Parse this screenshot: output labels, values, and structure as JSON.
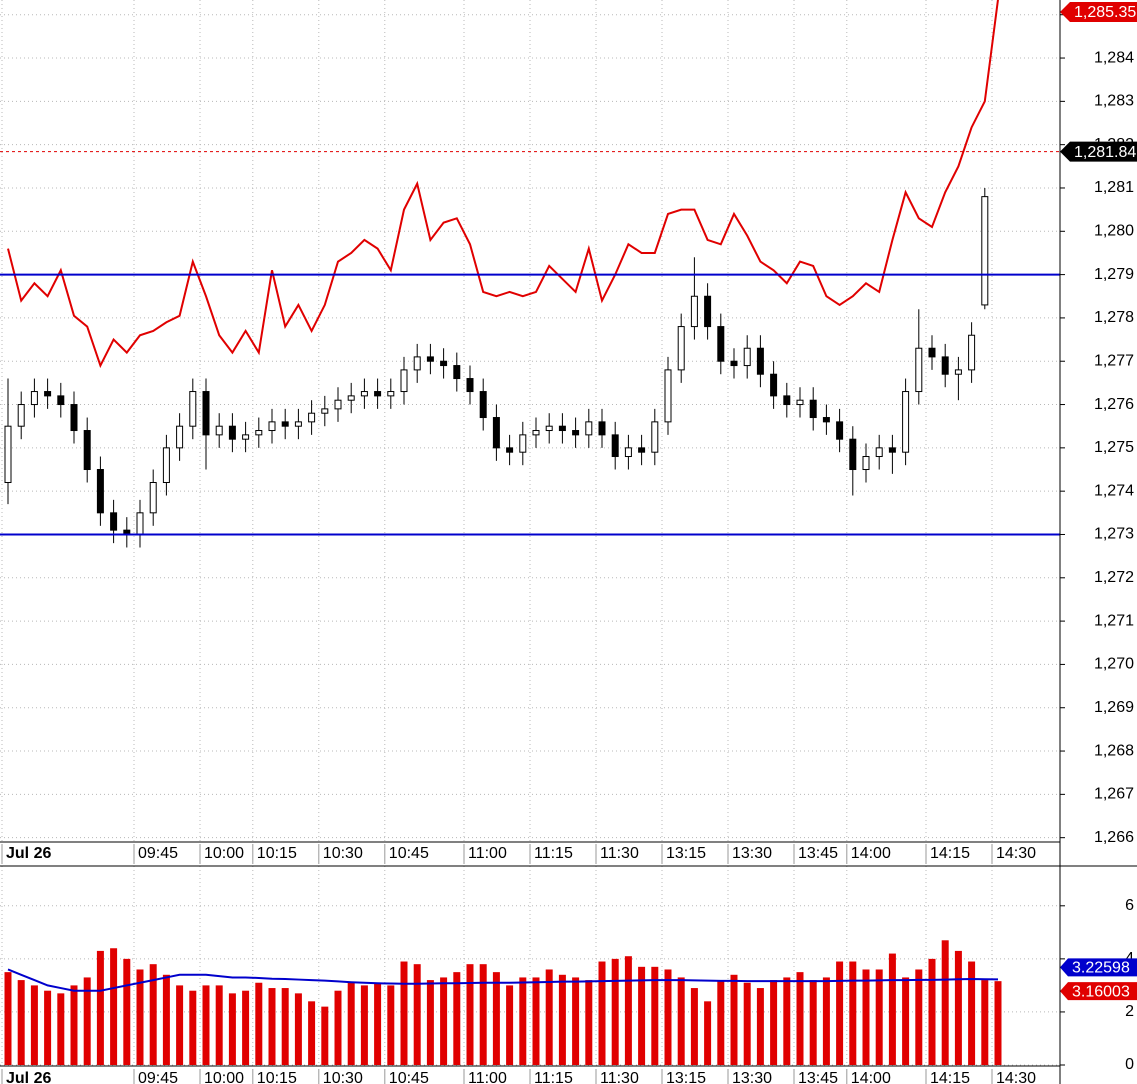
{
  "chart_data": [
    {
      "type": "candlestick",
      "categories": [
        "Jul 26",
        null,
        null,
        null,
        null,
        null,
        null,
        null,
        null,
        null,
        "09:45",
        null,
        null,
        null,
        null,
        "10:00",
        null,
        null,
        null,
        "10:15",
        null,
        null,
        null,
        null,
        "10:30",
        null,
        null,
        null,
        null,
        "10:45",
        null,
        null,
        null,
        null,
        null,
        "11:00",
        null,
        null,
        null,
        null,
        "11:15",
        null,
        null,
        null,
        null,
        "11:30",
        null,
        null,
        null,
        null,
        "13:15",
        null,
        null,
        null,
        null,
        "13:30",
        null,
        null,
        null,
        null,
        "13:45",
        null,
        null,
        null,
        "14:00",
        null,
        null,
        null,
        null,
        null,
        "14:15",
        null,
        null,
        null,
        null,
        "14:30"
      ],
      "open": [
        1274.2,
        1275.5,
        1276.0,
        1276.3,
        1276.2,
        1276.0,
        1275.4,
        1274.5,
        1273.5,
        1273.1,
        1273.0,
        1273.5,
        1274.2,
        1275.0,
        1275.5,
        1276.3,
        1275.3,
        1275.5,
        1275.2,
        1275.3,
        1275.4,
        1275.6,
        1275.5,
        1275.6,
        1275.8,
        1275.9,
        1276.1,
        1276.2,
        1276.3,
        1276.2,
        1276.3,
        1276.8,
        1277.1,
        1277.0,
        1276.9,
        1276.6,
        1276.3,
        1275.7,
        1275.0,
        1274.9,
        1275.3,
        1275.4,
        1275.5,
        1275.4,
        1275.3,
        1275.6,
        1275.3,
        1274.8,
        1275.0,
        1274.9,
        1275.6,
        1276.8,
        1277.8,
        1278.5,
        1277.8,
        1277.0,
        1276.9,
        1277.3,
        1276.7,
        1276.2,
        1276.0,
        1276.1,
        1275.7,
        1275.6,
        1275.2,
        1274.5,
        1274.8,
        1275.0,
        1274.9,
        1276.3,
        1277.3,
        1277.1,
        1276.7,
        1276.8,
        1278.3,
        null
      ],
      "high": [
        1276.6,
        1276.3,
        1276.6,
        1276.6,
        1276.5,
        1276.3,
        1275.7,
        1274.8,
        1273.8,
        1273.4,
        1273.8,
        1274.5,
        1275.3,
        1275.8,
        1276.6,
        1276.6,
        1275.8,
        1275.8,
        1275.6,
        1275.7,
        1275.9,
        1275.9,
        1275.9,
        1276.1,
        1276.2,
        1276.4,
        1276.5,
        1276.6,
        1276.6,
        1276.6,
        1277.1,
        1277.4,
        1277.4,
        1277.3,
        1277.2,
        1276.9,
        1276.6,
        1276.0,
        1275.3,
        1275.6,
        1275.7,
        1275.8,
        1275.8,
        1275.7,
        1275.9,
        1275.9,
        1275.6,
        1275.3,
        1275.3,
        1275.9,
        1277.1,
        1278.1,
        1279.4,
        1278.8,
        1278.1,
        1277.3,
        1277.6,
        1277.6,
        1277.0,
        1276.5,
        1276.4,
        1276.4,
        1276.0,
        1275.9,
        1275.5,
        1275.1,
        1275.3,
        1275.3,
        1276.6,
        1278.2,
        1277.6,
        1277.4,
        1277.1,
        1277.9,
        1281.0,
        null
      ],
      "low": [
        1273.7,
        1275.2,
        1275.7,
        1275.9,
        1275.7,
        1275.1,
        1274.2,
        1273.2,
        1272.8,
        1272.7,
        1272.7,
        1273.2,
        1273.9,
        1274.7,
        1275.2,
        1274.5,
        1275.0,
        1274.9,
        1274.9,
        1275.0,
        1275.1,
        1275.2,
        1275.2,
        1275.3,
        1275.5,
        1275.6,
        1275.8,
        1275.9,
        1275.9,
        1275.9,
        1276.0,
        1276.5,
        1276.7,
        1276.6,
        1276.3,
        1276.0,
        1275.4,
        1274.7,
        1274.6,
        1274.6,
        1275.0,
        1275.1,
        1275.1,
        1275.0,
        1275.0,
        1275.0,
        1274.5,
        1274.5,
        1274.6,
        1274.6,
        1275.3,
        1276.5,
        1277.5,
        1277.5,
        1276.7,
        1276.6,
        1276.6,
        1276.4,
        1275.9,
        1275.7,
        1275.7,
        1275.4,
        1275.3,
        1274.9,
        1273.9,
        1274.2,
        1274.5,
        1274.4,
        1274.6,
        1276.0,
        1276.8,
        1276.4,
        1276.1,
        1276.5,
        1278.2,
        null
      ],
      "close": [
        1275.5,
        1276.0,
        1276.3,
        1276.2,
        1276.0,
        1275.4,
        1274.5,
        1273.5,
        1273.1,
        1273.0,
        1273.5,
        1274.2,
        1275.0,
        1275.5,
        1276.3,
        1275.3,
        1275.5,
        1275.2,
        1275.3,
        1275.4,
        1275.6,
        1275.5,
        1275.6,
        1275.8,
        1275.9,
        1276.1,
        1276.2,
        1276.3,
        1276.2,
        1276.3,
        1276.8,
        1277.1,
        1277.0,
        1276.9,
        1276.6,
        1276.3,
        1275.7,
        1275.0,
        1274.9,
        1275.3,
        1275.4,
        1275.5,
        1275.4,
        1275.3,
        1275.6,
        1275.3,
        1274.8,
        1275.0,
        1274.9,
        1275.6,
        1276.8,
        1277.8,
        1278.5,
        1277.8,
        1277.0,
        1276.9,
        1277.3,
        1276.7,
        1276.2,
        1276.0,
        1276.1,
        1275.7,
        1275.6,
        1275.2,
        1274.5,
        1274.8,
        1275.0,
        1274.9,
        1276.3,
        1277.3,
        1277.1,
        1276.7,
        1276.8,
        1277.6,
        1280.8,
        null
      ],
      "line": {
        "color": "#e00000",
        "values": [
          1279.6,
          1278.4,
          1278.8,
          1278.5,
          1279.1,
          1278.05,
          1277.8,
          1276.9,
          1277.5,
          1277.2,
          1277.6,
          1277.7,
          1277.9,
          1278.05,
          1279.3,
          1278.5,
          1277.6,
          1277.2,
          1277.7,
          1277.2,
          1279.1,
          1277.8,
          1278.3,
          1277.7,
          1278.3,
          1279.3,
          1279.5,
          1279.8,
          1279.6,
          1279.1,
          1280.5,
          1281.1,
          1279.8,
          1280.2,
          1280.3,
          1279.7,
          1278.6,
          1278.5,
          1278.6,
          1278.5,
          1278.6,
          1279.2,
          1278.9,
          1278.6,
          1279.6,
          1278.4,
          1279.0,
          1279.7,
          1279.5,
          1279.5,
          1280.4,
          1280.5,
          1280.5,
          1279.8,
          1279.7,
          1280.4,
          1279.9,
          1279.3,
          1279.1,
          1278.8,
          1279.3,
          1279.2,
          1278.5,
          1278.3,
          1278.5,
          1278.8,
          1278.6,
          1279.8,
          1280.9,
          1280.3,
          1280.1,
          1280.9,
          1281.5,
          1282.4,
          1283.0,
          1285.35
        ]
      },
      "hlines": [
        {
          "value": 1279,
          "color": "#0000cc"
        },
        {
          "value": 1273,
          "color": "#0000cc"
        },
        {
          "value": 1281.84,
          "color": "#e00000",
          "dashed": true
        }
      ],
      "markers": [
        {
          "value": 1285.35,
          "label": "1,285.35",
          "color": "#e00000"
        },
        {
          "value": 1281.84,
          "label": "1,281.84",
          "color": "#000000"
        }
      ],
      "ylim": [
        1265.9,
        1285.34
      ],
      "yticks": [
        {
          "value": 1266,
          "label": "1,266"
        },
        {
          "value": 1267,
          "label": "1,267"
        },
        {
          "value": 1268,
          "label": "1,268"
        },
        {
          "value": 1269,
          "label": "1,269"
        },
        {
          "value": 1270,
          "label": "1,270"
        },
        {
          "value": 1271,
          "label": "1,271"
        },
        {
          "value": 1272,
          "label": "1,272"
        },
        {
          "value": 1273,
          "label": "1,273"
        },
        {
          "value": 1274,
          "label": "1,274"
        },
        {
          "value": 1275,
          "label": "1,275"
        },
        {
          "value": 1276,
          "label": "1,276"
        },
        {
          "value": 1277,
          "label": "1,277"
        },
        {
          "value": 1278,
          "label": "1,278"
        },
        {
          "value": 1279,
          "label": "1,279"
        },
        {
          "value": 1280,
          "label": "1,280"
        },
        {
          "value": 1281,
          "label": "1,281"
        },
        {
          "value": 1282,
          "label": "1,282"
        },
        {
          "value": 1283,
          "label": "1,283"
        },
        {
          "value": 1284,
          "label": "1,284"
        },
        {
          "value": 1285,
          "label": "1,285"
        }
      ],
      "grid": true
    },
    {
      "type": "bar",
      "categories": [
        "Jul 26",
        null,
        null,
        null,
        null,
        null,
        null,
        null,
        null,
        null,
        "09:45",
        null,
        null,
        null,
        null,
        "10:00",
        null,
        null,
        null,
        "10:15",
        null,
        null,
        null,
        null,
        "10:30",
        null,
        null,
        null,
        null,
        "10:45",
        null,
        null,
        null,
        null,
        null,
        "11:00",
        null,
        null,
        null,
        null,
        "11:15",
        null,
        null,
        null,
        null,
        "11:30",
        null,
        null,
        null,
        null,
        "13:15",
        null,
        null,
        null,
        null,
        "13:30",
        null,
        null,
        null,
        null,
        "13:45",
        null,
        null,
        null,
        "14:00",
        null,
        null,
        null,
        null,
        null,
        "14:15",
        null,
        null,
        null,
        null,
        "14:30"
      ],
      "color": "#e00000",
      "values": [
        3.5,
        3.2,
        3.0,
        2.8,
        2.7,
        3.0,
        3.3,
        4.3,
        4.4,
        4.0,
        3.6,
        3.8,
        3.4,
        3.0,
        2.8,
        3.0,
        3.0,
        2.7,
        2.8,
        3.1,
        2.9,
        2.9,
        2.7,
        2.4,
        2.2,
        2.8,
        3.1,
        3.0,
        3.1,
        3.0,
        3.9,
        3.8,
        3.2,
        3.3,
        3.5,
        3.8,
        3.8,
        3.5,
        3.0,
        3.3,
        3.3,
        3.6,
        3.4,
        3.3,
        3.2,
        3.9,
        4.0,
        4.1,
        3.7,
        3.7,
        3.6,
        3.3,
        2.9,
        2.4,
        3.2,
        3.4,
        3.1,
        2.9,
        3.2,
        3.3,
        3.5,
        3.2,
        3.3,
        3.9,
        3.9,
        3.6,
        3.6,
        4.2,
        3.3,
        3.6,
        4.0,
        4.7,
        4.3,
        3.9,
        3.2,
        3.16003
      ],
      "ma": {
        "color": "#0000cc",
        "values": [
          3.6,
          3.4,
          3.2,
          3.0,
          2.9,
          2.8,
          2.8,
          2.8,
          2.9,
          3.0,
          3.1,
          3.2,
          3.3,
          3.4,
          3.4,
          3.4,
          3.35,
          3.3,
          3.3,
          3.28,
          3.25,
          3.24,
          3.22,
          3.2,
          3.18,
          3.15,
          3.12,
          3.1,
          3.08,
          3.07,
          3.06,
          3.06,
          3.07,
          3.08,
          3.08,
          3.09,
          3.1,
          3.1,
          3.1,
          3.11,
          3.12,
          3.13,
          3.14,
          3.14,
          3.15,
          3.16,
          3.17,
          3.18,
          3.19,
          3.2,
          3.2,
          3.2,
          3.19,
          3.18,
          3.17,
          3.17,
          3.16,
          3.16,
          3.16,
          3.16,
          3.16,
          3.16,
          3.16,
          3.17,
          3.18,
          3.18,
          3.19,
          3.2,
          3.2,
          3.21,
          3.21,
          3.22,
          3.23,
          3.24,
          3.23,
          3.22598
        ]
      },
      "ylim": [
        0,
        7.5
      ],
      "yticks": [
        0,
        2,
        4,
        6
      ],
      "grid": true
    }
  ]
}
